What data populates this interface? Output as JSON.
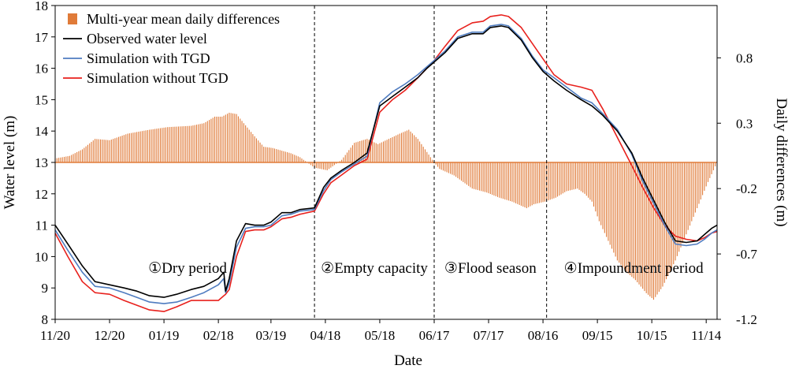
{
  "chart_data": {
    "type": "line",
    "xlabel": "Date",
    "ylabel": "Water level (m)",
    "y2label": "Daily differences (m)",
    "x_tick_labels": [
      "11/20",
      "12/20",
      "01/19",
      "02/18",
      "03/19",
      "04/18",
      "05/18",
      "06/17",
      "07/17",
      "08/16",
      "09/15",
      "10/15",
      "11/14"
    ],
    "x_tick_days": [
      0,
      30,
      60,
      90,
      119,
      149,
      179,
      209,
      239,
      269,
      299,
      329,
      359
    ],
    "xlim": [
      0,
      365
    ],
    "ylim": [
      8,
      18
    ],
    "yticks": [
      8,
      9,
      10,
      11,
      12,
      13,
      14,
      15,
      16,
      17,
      18
    ],
    "y2lim": [
      -1.2,
      1.2
    ],
    "y2ticks": [
      -1.2,
      -0.7,
      -0.2,
      0.3,
      0.8
    ],
    "y2_tick_labels": [
      "-1.2",
      "-0.7",
      "-0.2",
      "0.3",
      "0.8"
    ],
    "grid": false,
    "legend_position": "top-left",
    "period_boundaries": [
      143,
      209,
      271
    ],
    "periods": [
      {
        "label": "①Dry period",
        "x": 73
      },
      {
        "label": "②Empty capacity",
        "x": 176
      },
      {
        "label": "③Flood season",
        "x": 240
      },
      {
        "label": "④Impoundment period",
        "x": 319
      }
    ],
    "series": [
      {
        "name": "Observed water level",
        "type": "line",
        "axis": "left",
        "color": "#000000",
        "x": [
          0,
          7,
          15,
          22,
          30,
          38,
          45,
          52,
          60,
          67,
          75,
          82,
          90,
          93,
          94,
          96,
          100,
          105,
          110,
          115,
          119,
          125,
          130,
          135,
          143,
          148,
          152,
          158,
          165,
          172,
          179,
          186,
          193,
          200,
          205,
          209,
          215,
          222,
          230,
          236,
          240,
          246,
          250,
          257,
          263,
          269,
          275,
          282,
          290,
          296,
          302,
          310,
          318,
          324,
          330,
          336,
          342,
          348,
          354,
          358,
          362,
          365
        ],
        "y": [
          11.0,
          10.4,
          9.7,
          9.2,
          9.1,
          9.0,
          8.9,
          8.75,
          8.7,
          8.8,
          8.95,
          9.05,
          9.3,
          9.5,
          8.9,
          9.3,
          10.5,
          11.05,
          11.0,
          11.0,
          11.1,
          11.4,
          11.4,
          11.5,
          11.55,
          12.2,
          12.5,
          12.75,
          13.0,
          13.3,
          14.8,
          15.1,
          15.4,
          15.7,
          16.0,
          16.2,
          16.5,
          16.95,
          17.1,
          17.1,
          17.3,
          17.35,
          17.3,
          16.9,
          16.35,
          15.9,
          15.6,
          15.3,
          15.0,
          14.8,
          14.5,
          14.0,
          13.3,
          12.5,
          11.8,
          11.1,
          10.5,
          10.45,
          10.5,
          10.7,
          10.9,
          11.0
        ]
      },
      {
        "name": "Simulation with TGD",
        "type": "line",
        "axis": "left",
        "color": "#4f7cc0",
        "x": [
          0,
          7,
          15,
          22,
          30,
          38,
          45,
          52,
          60,
          67,
          75,
          82,
          90,
          93,
          94,
          96,
          100,
          105,
          110,
          115,
          119,
          125,
          130,
          135,
          143,
          148,
          152,
          158,
          165,
          172,
          179,
          186,
          193,
          200,
          205,
          209,
          215,
          222,
          230,
          236,
          240,
          246,
          250,
          257,
          263,
          269,
          275,
          282,
          290,
          296,
          302,
          310,
          318,
          324,
          330,
          336,
          342,
          348,
          354,
          358,
          362,
          365
        ],
        "y": [
          10.85,
          10.2,
          9.5,
          9.05,
          9.0,
          8.85,
          8.7,
          8.55,
          8.5,
          8.55,
          8.7,
          8.85,
          9.1,
          9.3,
          8.85,
          9.15,
          10.3,
          10.9,
          10.95,
          10.95,
          11.0,
          11.3,
          11.35,
          11.45,
          11.5,
          12.1,
          12.45,
          12.7,
          12.95,
          13.2,
          14.9,
          15.25,
          15.5,
          15.8,
          16.05,
          16.25,
          16.55,
          17.0,
          17.15,
          17.15,
          17.35,
          17.4,
          17.35,
          16.95,
          16.4,
          15.95,
          15.7,
          15.4,
          15.05,
          14.9,
          14.55,
          14.05,
          13.25,
          12.4,
          11.7,
          11.0,
          10.4,
          10.35,
          10.4,
          10.55,
          10.75,
          10.85
        ]
      },
      {
        "name": "Simulation without TGD",
        "type": "line",
        "axis": "left",
        "color": "#e8211d",
        "x": [
          0,
          7,
          15,
          22,
          30,
          38,
          45,
          52,
          60,
          67,
          75,
          82,
          90,
          93,
          94,
          96,
          100,
          105,
          110,
          115,
          119,
          125,
          130,
          135,
          143,
          148,
          152,
          158,
          165,
          172,
          179,
          186,
          193,
          200,
          205,
          209,
          215,
          222,
          230,
          236,
          240,
          246,
          250,
          257,
          263,
          269,
          275,
          282,
          290,
          296,
          302,
          310,
          318,
          324,
          330,
          336,
          342,
          348,
          354,
          358,
          362,
          365
        ],
        "y": [
          10.75,
          10.0,
          9.2,
          8.85,
          8.8,
          8.6,
          8.45,
          8.3,
          8.25,
          8.4,
          8.6,
          8.6,
          8.6,
          8.75,
          8.8,
          8.95,
          10.0,
          10.8,
          10.85,
          10.85,
          10.95,
          11.2,
          11.25,
          11.35,
          11.45,
          12.0,
          12.35,
          12.6,
          12.9,
          13.1,
          14.6,
          15.0,
          15.3,
          15.7,
          16.0,
          16.25,
          16.7,
          17.2,
          17.45,
          17.5,
          17.65,
          17.7,
          17.65,
          17.3,
          16.8,
          16.3,
          15.8,
          15.5,
          15.4,
          15.3,
          14.7,
          13.8,
          12.9,
          12.2,
          11.55,
          11.0,
          10.65,
          10.55,
          10.5,
          10.6,
          10.75,
          10.8
        ]
      },
      {
        "name": "Multi-year mean daily differences",
        "type": "bar",
        "axis": "right",
        "color": "#e07b39",
        "x": [
          0,
          8,
          15,
          22,
          30,
          40,
          52,
          62,
          75,
          82,
          88,
          92,
          96,
          100,
          104,
          110,
          115,
          120,
          125,
          130,
          135,
          143,
          150,
          158,
          165,
          172,
          178,
          184,
          190,
          195,
          200,
          209,
          212,
          220,
          230,
          238,
          245,
          252,
          260,
          264,
          270,
          276,
          282,
          288,
          292,
          296,
          300,
          305,
          310,
          316,
          320,
          326,
          330,
          335,
          342,
          348,
          354,
          360,
          365
        ],
        "y": [
          0.03,
          0.05,
          0.1,
          0.18,
          0.17,
          0.22,
          0.25,
          0.27,
          0.28,
          0.3,
          0.35,
          0.35,
          0.38,
          0.37,
          0.3,
          0.2,
          0.12,
          0.11,
          0.09,
          0.07,
          0.04,
          -0.04,
          -0.06,
          0.02,
          0.15,
          0.18,
          0.14,
          0.18,
          0.22,
          0.25,
          0.18,
          0.0,
          -0.05,
          -0.1,
          -0.2,
          -0.23,
          -0.27,
          -0.3,
          -0.35,
          -0.32,
          -0.3,
          -0.27,
          -0.22,
          -0.2,
          -0.24,
          -0.3,
          -0.45,
          -0.6,
          -0.75,
          -0.85,
          -0.9,
          -1.0,
          -1.05,
          -0.95,
          -0.75,
          -0.55,
          -0.35,
          -0.15,
          0.0
        ]
      }
    ]
  }
}
